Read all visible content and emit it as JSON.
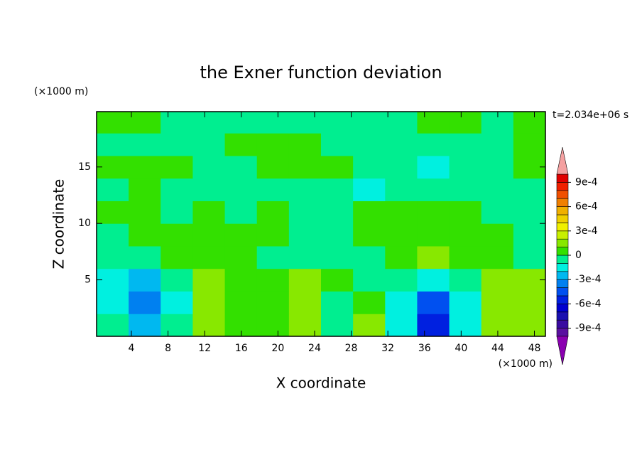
{
  "chart_data": {
    "type": "contour",
    "title": "the Exner function deviation",
    "x_label": "X coordinate",
    "y_label": "Z coordinate",
    "x_unit": "(×1000 m)",
    "y_unit": "(×1000 m)",
    "annotation": "t=2.034e+06 s",
    "xlim": [
      0.2,
      49.2
    ],
    "ylim": [
      0,
      19.9
    ],
    "xticks": [
      4,
      8,
      12,
      16,
      20,
      24,
      28,
      32,
      36,
      40,
      44,
      48
    ],
    "yticks": [
      5,
      10,
      15
    ],
    "xbins": [
      0.2,
      3.7,
      7.2,
      10.7,
      14.2,
      17.7,
      21.2,
      24.7,
      28.2,
      31.7,
      35.2,
      38.7,
      42.2,
      45.7,
      49.2
    ],
    "ybins": [
      0,
      2,
      4,
      6,
      8,
      10,
      12,
      14,
      16,
      18,
      19.9
    ],
    "z": [
      [
        -5e-05,
        -0.0003,
        -5e-05,
        0.00015,
        5e-05,
        5e-05,
        0.00015,
        -5e-05,
        0.00015,
        -0.0002,
        -0.0006,
        -0.00015,
        0.00015,
        0.00015
      ],
      [
        -0.00015,
        -0.0004,
        -0.00015,
        0.00015,
        5e-05,
        5e-05,
        0.00015,
        -5e-05,
        5e-05,
        -0.0002,
        -0.0005,
        -0.00015,
        0.00015,
        0.00015
      ],
      [
        -0.00015,
        -0.0003,
        -5e-05,
        0.00015,
        5e-05,
        5e-05,
        0.00015,
        5e-05,
        -5e-05,
        -5e-05,
        -0.0002,
        -5e-05,
        0.00015,
        0.00015
      ],
      [
        -5e-05,
        -5e-05,
        5e-05,
        5e-05,
        5e-05,
        -5e-05,
        -5e-05,
        -5e-05,
        -5e-05,
        5e-05,
        0.00015,
        5e-05,
        5e-05,
        -5e-05
      ],
      [
        -5e-05,
        5e-05,
        5e-05,
        5e-05,
        5e-05,
        5e-05,
        -5e-05,
        -5e-05,
        5e-05,
        5e-05,
        5e-05,
        5e-05,
        5e-05,
        -5e-05
      ],
      [
        5e-05,
        5e-05,
        -5e-05,
        5e-05,
        -5e-05,
        5e-05,
        -5e-05,
        -5e-05,
        5e-05,
        5e-05,
        5e-05,
        5e-05,
        -5e-05,
        -5e-05
      ],
      [
        -5e-05,
        5e-05,
        -5e-05,
        -5e-05,
        -5e-05,
        -5e-05,
        -5e-05,
        -5e-05,
        -0.00015,
        -5e-05,
        -5e-05,
        -5e-05,
        -5e-05,
        -5e-05
      ],
      [
        5e-05,
        5e-05,
        5e-05,
        -5e-05,
        -5e-05,
        5e-05,
        5e-05,
        5e-05,
        -5e-05,
        -5e-05,
        -0.00015,
        -5e-05,
        -5e-05,
        5e-05
      ],
      [
        -5e-05,
        -5e-05,
        -5e-05,
        -5e-05,
        5e-05,
        5e-05,
        5e-05,
        -5e-05,
        -5e-05,
        -5e-05,
        -5e-05,
        -5e-05,
        -5e-05,
        5e-05
      ],
      [
        5e-05,
        5e-05,
        -5e-05,
        -5e-05,
        -5e-05,
        -5e-05,
        -5e-05,
        -5e-05,
        -5e-05,
        -5e-05,
        5e-05,
        5e-05,
        -5e-05,
        5e-05
      ]
    ],
    "levels": [
      -0.001,
      -0.0009,
      -0.0008,
      -0.0007,
      -0.0006,
      -0.0005,
      -0.0004,
      -0.0003,
      -0.0002,
      -0.0001,
      0,
      0.0001,
      0.0002,
      0.0003,
      0.0004,
      0.0005,
      0.0006,
      0.0007,
      0.0008,
      0.0009,
      0.001
    ],
    "colors": [
      "#5a10a0",
      "#3a0aa0",
      "#1a10b0",
      "#0000d0",
      "#0020e0",
      "#0050f0",
      "#0080f0",
      "#00b8f0",
      "#00f0e0",
      "#00ee90",
      "#33e000",
      "#88e800",
      "#c8f000",
      "#f0f000",
      "#f0d000",
      "#f0b000",
      "#f08000",
      "#f05000",
      "#f02000",
      "#e00000"
    ],
    "under_color": "#8a00b0",
    "over_color": "#f4a0a0",
    "colorbar_ticks": [
      {
        "value": 0.0009,
        "label": "9e-4"
      },
      {
        "value": 0.0006,
        "label": "6e-4"
      },
      {
        "value": 0.0003,
        "label": "3e-4"
      },
      0,
      {
        "value": -0.0003,
        "label": "-3e-4"
      },
      {
        "value": -0.0006,
        "label": "-6e-4"
      },
      {
        "value": -0.0009,
        "label": "-9e-4"
      }
    ]
  }
}
